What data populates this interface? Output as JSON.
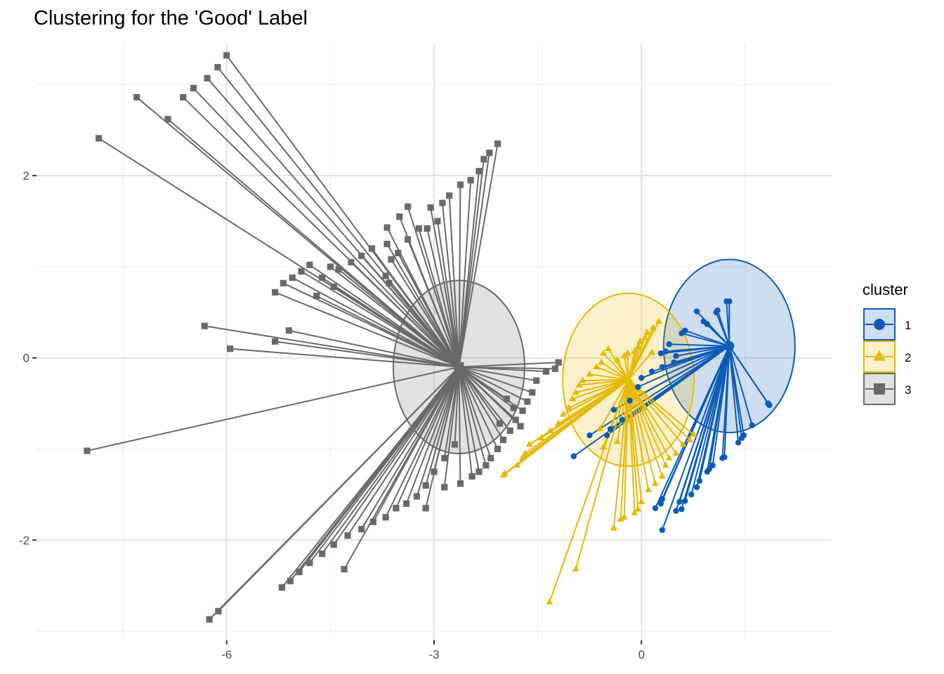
{
  "chart_data": {
    "type": "scatter",
    "title": "Clustering for the 'Good' Label",
    "xlabel": "",
    "ylabel": "",
    "xlim": [
      -8.75,
      2.75
    ],
    "ylim": [
      -3.1,
      3.45
    ],
    "x_ticks": [
      -6,
      -3,
      0
    ],
    "y_ticks": [
      2,
      0,
      -2
    ],
    "x_tick_labels": [
      "-6",
      "-3",
      "0"
    ],
    "y_tick_labels": [
      "2",
      "0",
      "-2"
    ],
    "grid": true,
    "legend": {
      "title": "cluster",
      "position": "right"
    },
    "series": [
      {
        "name": "1",
        "color": "#0b5cb6",
        "marker": "circle",
        "center": [
          1.27,
          0.13
        ],
        "ellipse": {
          "cx": 1.27,
          "cy": 0.13,
          "rx": 0.95,
          "ry": 0.95
        },
        "points": [
          [
            1.27,
            0.62
          ],
          [
            1.23,
            0.62
          ],
          [
            1.1,
            0.52
          ],
          [
            1.08,
            0.5
          ],
          [
            0.8,
            0.51
          ],
          [
            0.9,
            0.4
          ],
          [
            0.95,
            0.37
          ],
          [
            0.63,
            0.3
          ],
          [
            0.58,
            0.27
          ],
          [
            0.4,
            0.15
          ],
          [
            0.35,
            0.07
          ],
          [
            0.28,
            0.05
          ],
          [
            0.5,
            0.02
          ],
          [
            0.47,
            -0.05
          ],
          [
            0.3,
            -0.1
          ],
          [
            0.15,
            -0.15
          ],
          [
            0.0,
            -0.22
          ],
          [
            -0.05,
            -0.32
          ],
          [
            -0.17,
            -0.47
          ],
          [
            -0.4,
            -0.57
          ],
          [
            -0.28,
            -0.68
          ],
          [
            -0.45,
            -0.78
          ],
          [
            -0.5,
            -0.85
          ],
          [
            -0.75,
            -0.85
          ],
          [
            -0.98,
            -1.08
          ],
          [
            1.85,
            -0.52
          ],
          [
            1.83,
            -0.5
          ],
          [
            1.6,
            -0.74
          ],
          [
            1.48,
            -0.85
          ],
          [
            1.45,
            -0.88
          ],
          [
            1.4,
            -0.93
          ],
          [
            1.2,
            -1.09
          ],
          [
            1.17,
            -1.1
          ],
          [
            1.03,
            -1.18
          ],
          [
            0.98,
            -1.22
          ],
          [
            0.95,
            -1.25
          ],
          [
            0.84,
            -1.35
          ],
          [
            0.8,
            -1.42
          ],
          [
            0.72,
            -1.5
          ],
          [
            0.55,
            -1.58
          ],
          [
            0.63,
            -1.57
          ],
          [
            0.58,
            -1.66
          ],
          [
            0.5,
            -1.68
          ],
          [
            0.3,
            -1.55
          ],
          [
            0.28,
            -1.6
          ],
          [
            0.2,
            -1.65
          ],
          [
            0.3,
            -1.89
          ]
        ]
      },
      {
        "name": "2",
        "color": "#e7b800",
        "marker": "triangle",
        "center": [
          -0.19,
          -0.24
        ],
        "ellipse": {
          "cx": -0.19,
          "cy": -0.24,
          "rx": 0.95,
          "ry": 0.95
        },
        "points": [
          [
            0.25,
            0.4
          ],
          [
            0.17,
            0.33
          ],
          [
            0.08,
            0.28
          ],
          [
            0.05,
            0.22
          ],
          [
            -0.02,
            0.18
          ],
          [
            -0.05,
            0.12
          ],
          [
            -0.1,
            0.07
          ],
          [
            -0.2,
            0.05
          ],
          [
            -0.25,
            0.02
          ],
          [
            -0.35,
            -0.02
          ],
          [
            -0.48,
            0.1
          ],
          [
            -0.55,
            0.05
          ],
          [
            -0.58,
            -0.05
          ],
          [
            -0.65,
            -0.1
          ],
          [
            -0.75,
            -0.18
          ],
          [
            -0.85,
            -0.25
          ],
          [
            -0.9,
            -0.3
          ],
          [
            -0.95,
            -0.38
          ],
          [
            -1.0,
            -0.45
          ],
          [
            -1.05,
            -0.55
          ],
          [
            -1.13,
            -0.62
          ],
          [
            -1.2,
            -0.72
          ],
          [
            -1.32,
            -0.8
          ],
          [
            -1.45,
            -0.88
          ],
          [
            -1.62,
            -0.95
          ],
          [
            -1.68,
            -1.05
          ],
          [
            -1.72,
            -1.1
          ],
          [
            -1.8,
            -1.18
          ],
          [
            -1.98,
            -1.27
          ],
          [
            -2.0,
            -1.29
          ],
          [
            -0.4,
            -1.87
          ],
          [
            -0.3,
            -1.77
          ],
          [
            -0.25,
            -1.75
          ],
          [
            -0.1,
            -1.7
          ],
          [
            -0.05,
            -1.66
          ],
          [
            0.0,
            -1.58
          ],
          [
            0.1,
            -1.45
          ],
          [
            0.2,
            -1.38
          ],
          [
            0.3,
            -1.3
          ],
          [
            0.35,
            -1.18
          ],
          [
            0.4,
            -1.1
          ],
          [
            0.5,
            -1.05
          ],
          [
            0.6,
            -0.95
          ],
          [
            0.7,
            -0.9
          ],
          [
            0.75,
            -0.84
          ],
          [
            -0.95,
            -2.32
          ],
          [
            -1.33,
            -2.68
          ],
          [
            -0.55,
            -0.98
          ],
          [
            -0.35,
            -0.92
          ],
          [
            -0.6,
            -0.78
          ],
          [
            -0.2,
            -0.68
          ],
          [
            0.05,
            -0.55
          ],
          [
            0.15,
            0.06
          ]
        ]
      },
      {
        "name": "3",
        "color": "#696969",
        "marker": "square",
        "center": [
          -2.64,
          -0.1
        ],
        "ellipse": {
          "cx": -2.64,
          "cy": -0.1,
          "rx": 0.95,
          "ry": 0.95
        },
        "points": [
          [
            -6.0,
            3.32
          ],
          [
            -6.13,
            3.19
          ],
          [
            -6.28,
            3.07
          ],
          [
            -6.63,
            2.86
          ],
          [
            -6.48,
            2.96
          ],
          [
            -7.3,
            2.86
          ],
          [
            -6.85,
            2.62
          ],
          [
            -7.85,
            2.41
          ],
          [
            -2.08,
            2.35
          ],
          [
            -2.2,
            2.25
          ],
          [
            -2.28,
            2.18
          ],
          [
            -2.35,
            2.05
          ],
          [
            -2.47,
            1.95
          ],
          [
            -2.62,
            1.9
          ],
          [
            -2.78,
            1.78
          ],
          [
            -2.88,
            1.7
          ],
          [
            -3.05,
            1.65
          ],
          [
            -2.95,
            1.5
          ],
          [
            -3.1,
            1.42
          ],
          [
            -3.38,
            1.66
          ],
          [
            -3.5,
            1.55
          ],
          [
            -3.68,
            1.43
          ],
          [
            -3.22,
            1.42
          ],
          [
            -3.38,
            1.3
          ],
          [
            -3.52,
            1.15
          ],
          [
            -3.62,
            1.08
          ],
          [
            -3.68,
            1.25
          ],
          [
            -3.9,
            1.2
          ],
          [
            -4.05,
            1.12
          ],
          [
            -4.2,
            1.05
          ],
          [
            -4.38,
            0.97
          ],
          [
            -4.5,
            1.0
          ],
          [
            -4.62,
            0.88
          ],
          [
            -4.45,
            0.78
          ],
          [
            -4.8,
            1.02
          ],
          [
            -4.92,
            0.95
          ],
          [
            -5.05,
            0.88
          ],
          [
            -5.18,
            0.82
          ],
          [
            -5.3,
            0.72
          ],
          [
            -4.7,
            0.68
          ],
          [
            -3.7,
            0.9
          ],
          [
            -3.65,
            0.82
          ],
          [
            -6.32,
            0.35
          ],
          [
            -5.1,
            0.3
          ],
          [
            -5.3,
            0.18
          ],
          [
            -5.95,
            0.1
          ],
          [
            -8.02,
            -1.02
          ],
          [
            -1.2,
            -0.05
          ],
          [
            -1.25,
            -0.12
          ],
          [
            -1.38,
            -0.15
          ],
          [
            -1.52,
            -0.25
          ],
          [
            -1.58,
            -0.38
          ],
          [
            -1.65,
            -0.48
          ],
          [
            -1.72,
            -0.58
          ],
          [
            -1.82,
            -0.68
          ],
          [
            -1.9,
            -0.8
          ],
          [
            -2.0,
            -0.9
          ],
          [
            -2.08,
            -1.0
          ],
          [
            -2.18,
            -1.1
          ],
          [
            -2.25,
            -1.18
          ],
          [
            -2.35,
            -1.25
          ],
          [
            -2.45,
            -1.3
          ],
          [
            -2.7,
            -0.95
          ],
          [
            -2.85,
            -1.1
          ],
          [
            -3.0,
            -1.25
          ],
          [
            -3.12,
            -1.4
          ],
          [
            -3.25,
            -1.52
          ],
          [
            -3.4,
            -1.6
          ],
          [
            -3.55,
            -1.65
          ],
          [
            -3.7,
            -1.75
          ],
          [
            -3.88,
            -1.8
          ],
          [
            -4.05,
            -1.88
          ],
          [
            -4.25,
            -1.95
          ],
          [
            -4.45,
            -2.05
          ],
          [
            -4.62,
            -2.15
          ],
          [
            -4.8,
            -2.25
          ],
          [
            -4.95,
            -2.35
          ],
          [
            -5.08,
            -2.45
          ],
          [
            -5.2,
            -2.52
          ],
          [
            -6.12,
            -2.78
          ],
          [
            -6.25,
            -2.87
          ],
          [
            -4.3,
            -2.32
          ],
          [
            -3.12,
            -1.65
          ],
          [
            -2.85,
            -1.42
          ],
          [
            -2.62,
            -1.38
          ],
          [
            -1.75,
            -0.75
          ],
          [
            -1.85,
            -0.55
          ],
          [
            -2.05,
            -0.72
          ],
          [
            -1.95,
            -0.45
          ]
        ]
      }
    ]
  }
}
